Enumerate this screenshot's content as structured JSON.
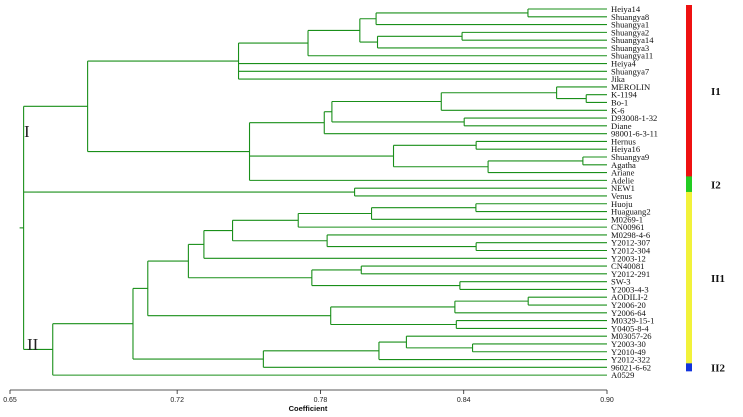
{
  "colors": {
    "tree": "#1a8f1a",
    "I1": "#ee1111",
    "I2": "#22cc22",
    "II1": "#f2f23a",
    "II2": "#1133dd",
    "axis": "#222222"
  },
  "axis": {
    "label": "Coefficient",
    "ticks": [
      "0.65",
      "0.72",
      "0.78",
      "0.84",
      "0.90"
    ],
    "tick_values": [
      0.65,
      0.72,
      0.78,
      0.84,
      0.9
    ],
    "range": [
      0.65,
      0.9
    ]
  },
  "clusters": {
    "I": "I",
    "II": "II"
  },
  "subgroups": [
    {
      "id": "I1",
      "label": "I1",
      "from": 0,
      "to": 21
    },
    {
      "id": "I2",
      "label": "I2",
      "from": 22,
      "to": 23
    },
    {
      "id": "II1",
      "label": "II1",
      "from": 24,
      "to": 45
    },
    {
      "id": "II2",
      "label": "II2",
      "from": 46,
      "to": 46
    }
  ],
  "leaves": [
    "Heiya14",
    "Shuangya8",
    "Shuangya1",
    "Shuangya2",
    "Shuangya14",
    "Shuangya3",
    "Shuangya11",
    "Heiya4",
    "Shuangya7",
    "Jika",
    "MEROLIN",
    "K-1194",
    "Bo-1",
    "K-6",
    "D93008-1-32",
    "Diane",
    "98001-6-3-11",
    "Hernus",
    "Heiya16",
    "Shuangya9",
    "Agatha",
    "Ariane",
    "Adelie",
    "NEW1",
    "Venus",
    "Huoju",
    "Huaguang2",
    "M0269-1",
    "CN00961",
    "M0298-4-6",
    "Y2012-307",
    "Y2012-304",
    "Y2003-12",
    "CN40081",
    "Y2012-291",
    "SW-3",
    "Y2003-4-3",
    "AODILI-2",
    "Y2006-20",
    "Y2006-64",
    "M0329-15-1",
    "Y0405-8-4",
    "M03057-26",
    "Y2003-30",
    "Y2010-49",
    "Y2012-322",
    "96021-6-62",
    "A0529"
  ],
  "tree": [
    "m",
    0.6557,
    [
      "m",
      0.6825,
      [
        "m",
        0.7457,
        [
          "m",
          0.7748,
          [
            "m",
            0.7965,
            [
              "m",
              0.8033,
              [
                "m",
                0.8669,
                0,
                1
              ],
              2
            ],
            [
              "m",
              0.8039,
              [
                "m",
                0.8393,
                3,
                4
              ],
              5
            ]
          ],
          6
        ],
        7,
        8,
        9
      ],
      [
        "m",
        0.7503,
        [
          "m",
          0.7816,
          [
            "m",
            0.7848,
            [
              "m",
              0.8306,
              [
                "m",
                0.8789,
                10,
                [
                  "m",
                  0.8913,
                  11,
                  12
                ]
              ],
              13
            ],
            [
              "m",
              0.8402,
              14,
              15
            ]
          ],
          16
        ],
        [
          "m",
          0.8106,
          [
            "m",
            0.8452,
            17,
            18
          ],
          [
            "m",
            0.8502,
            [
              "m",
              0.8899,
              19,
              20
            ],
            21
          ]
        ],
        22
      ]
    ],
    [
      "m",
      0.6611,
      [
        "m",
        0.7943,
        23,
        24
      ]
    ],
    [
      "m",
      0.6679,
      [
        "m",
        0.7015,
        [
          "m",
          0.7077,
          [
            "m",
            0.7247,
            [
              "m",
              0.7312,
              [
                "m",
                0.7432,
                [
                  "m",
                  0.7707,
                  [
                    "m",
                    0.8014,
                    [
                      "m",
                      0.8451,
                      25,
                      26
                    ],
                    27
                  ],
                  28
                ],
                [
                  "m",
                  0.7828,
                  29,
                  [
                    "m",
                    0.8452,
                    30,
                    31
                  ]
                ]
              ],
              32
            ],
            [
              "m",
              0.7764,
              [
                "m",
                0.7971,
                33,
                34
              ],
              [
                "m",
                0.8384,
                35,
                36
              ]
            ]
          ],
          [
            "m",
            0.7843,
            [
              "m",
              0.8363,
              [
                "m",
                0.867,
                37,
                38
              ],
              39
            ],
            [
              "m",
              0.8369,
              40,
              41
            ]
          ]
        ],
        [
          "m",
          0.7561,
          [
            "m",
            0.8045,
            [
              "m",
              0.816,
              42,
              [
                "m",
                0.8437,
                43,
                44
              ]
            ],
            45
          ],
          46
        ]
      ],
      47
    ]
  ]
}
